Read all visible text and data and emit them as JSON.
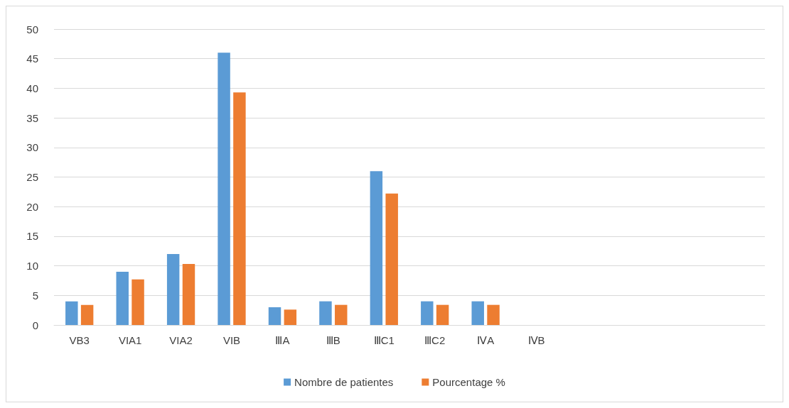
{
  "chart_data": {
    "type": "bar",
    "categories": [
      "VB3",
      "VIA1",
      "VIA2",
      "VIB",
      "ⅢA",
      "ⅢB",
      "ⅢC1",
      "ⅢC2",
      "ⅣA",
      "ⅣB",
      null,
      null,
      null,
      null
    ],
    "series": [
      {
        "name": "Nombre de patientes",
        "color": "#5b9bd5",
        "values": [
          4,
          9,
          12,
          46,
          3,
          4,
          26,
          4,
          4,
          null,
          null,
          null,
          null,
          null
        ]
      },
      {
        "name": "Pourcentage %",
        "color": "#ed7d31",
        "values": [
          3.4,
          7.7,
          10.3,
          39.3,
          2.6,
          3.4,
          22.2,
          3.4,
          3.4,
          null,
          null,
          null,
          null,
          null
        ]
      }
    ],
    "ylim": [
      0,
      50
    ],
    "yticks": [
      0,
      5,
      10,
      15,
      20,
      25,
      30,
      35,
      40,
      45,
      50
    ],
    "grid": "y",
    "legend": "bottom"
  }
}
